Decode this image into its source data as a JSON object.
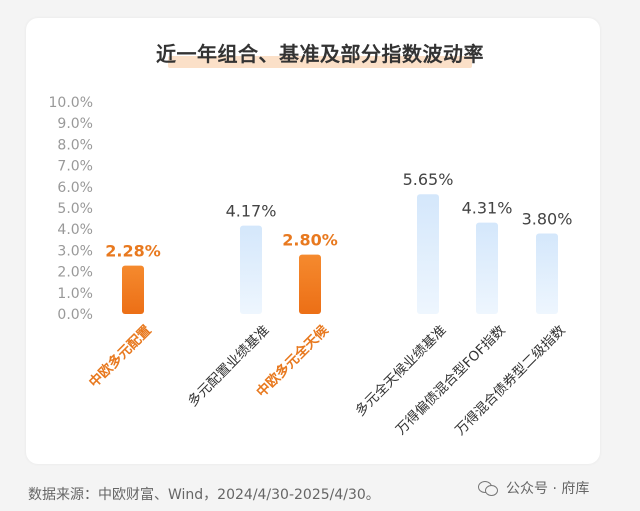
{
  "title": "近一年组合、基准及部分指数波动率",
  "source_note": "数据来源：中欧财富、Wind，2024/4/30-2025/4/30。",
  "watermark": "公众号 · 府库",
  "colors": {
    "orange": "#f07a22",
    "orange_label": "#e8791f",
    "blue_top": "#d4e7fb",
    "blue_bottom": "#eef6fe",
    "orange_cat": "#e8791f",
    "dark_cat": "#333333",
    "tick": "#999999"
  },
  "chart_data": {
    "type": "bar",
    "title": "近一年组合、基准及部分指数波动率",
    "categories": [
      "中欧多元配置",
      "多元配置业绩基准",
      "中欧多元全天候",
      "多元全天候业绩基准",
      "万得偏债混合型FOF指数",
      "万得混合债券型二级指数"
    ],
    "values": [
      2.28,
      4.17,
      2.8,
      5.65,
      4.31,
      3.8
    ],
    "data_labels": [
      "2.28%",
      "4.17%",
      "2.80%",
      "5.65%",
      "4.31%",
      "3.80%"
    ],
    "highlight": [
      true,
      false,
      true,
      false,
      false,
      false
    ],
    "ylim": [
      0,
      10
    ],
    "yticks": [
      "0.0%",
      "1.0%",
      "2.0%",
      "3.0%",
      "4.0%",
      "5.0%",
      "6.0%",
      "7.0%",
      "8.0%",
      "9.0%",
      "10.0%"
    ],
    "grid": false,
    "legend": "none"
  }
}
